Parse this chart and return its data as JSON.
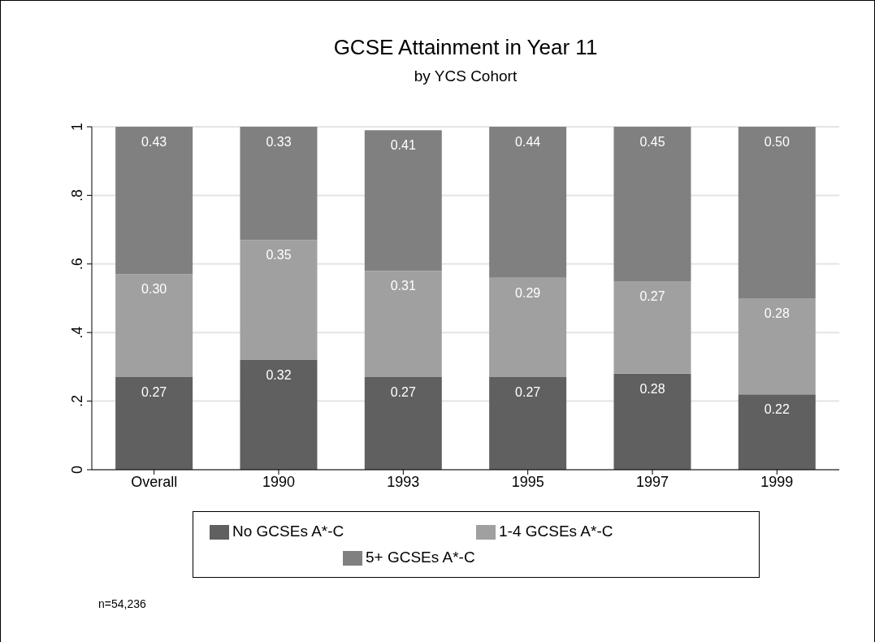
{
  "chart_data": {
    "type": "bar",
    "title": "GCSE Attainment in Year 11",
    "subtitle": "by YCS Cohort",
    "categories": [
      "Overall",
      "1990",
      "1993",
      "1995",
      "1997",
      "1999"
    ],
    "stacked": true,
    "series": [
      {
        "name": "No GCSEs A*-C",
        "color": "#606060",
        "values": [
          0.27,
          0.32,
          0.27,
          0.27,
          0.28,
          0.22
        ],
        "value_labels": [
          "0.27",
          "0.32",
          "0.27",
          "0.27",
          "0.28",
          "0.22"
        ]
      },
      {
        "name": "1-4 GCSEs A*-C",
        "color": "#a0a0a0",
        "values": [
          0.3,
          0.35,
          0.31,
          0.29,
          0.27,
          0.28
        ],
        "value_labels": [
          "0.30",
          "0.35",
          "0.31",
          "0.29",
          "0.27",
          "0.28"
        ]
      },
      {
        "name": "5+ GCSEs A*-C",
        "color": "#808080",
        "values": [
          0.43,
          0.33,
          0.41,
          0.44,
          0.45,
          0.5
        ],
        "value_labels": [
          "0.43",
          "0.33",
          "0.41",
          "0.44",
          "0.45",
          "0.50"
        ]
      }
    ],
    "ylim": [
      0,
      1
    ],
    "yticks": [
      0,
      {
        "value": 0.2,
        "label": ".2"
      },
      {
        "value": 0.4,
        "label": ".4"
      },
      {
        "value": 0.6,
        "label": ".6"
      },
      {
        "value": 0.8,
        "label": ".8"
      },
      1
    ],
    "grid": "y",
    "legend": "bottom",
    "annotations": [
      "n=54,236"
    ]
  }
}
